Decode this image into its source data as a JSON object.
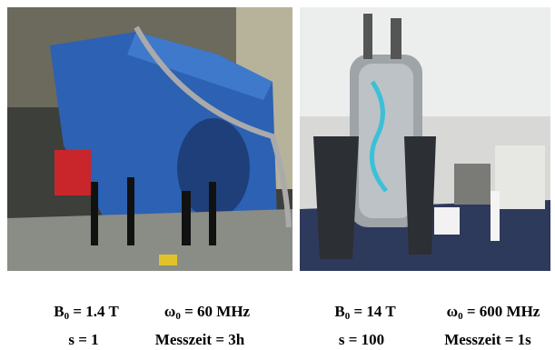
{
  "panels": [
    {
      "field": {
        "symbol": "B",
        "sub": "0",
        "rest": " = 1.4 T"
      },
      "frequency": {
        "symbol": "ω",
        "sub": "0",
        "rest": " = 60 MHz"
      },
      "s": "s = 1",
      "time": "Messzeit = 3h"
    },
    {
      "field": {
        "symbol": "B",
        "sub": "0",
        "rest": " = 14 T"
      },
      "frequency": {
        "symbol": "ω",
        "sub": "0",
        "rest": " = 600 MHz"
      },
      "s": "s = 100",
      "time": "Messzeit = 1s"
    }
  ]
}
